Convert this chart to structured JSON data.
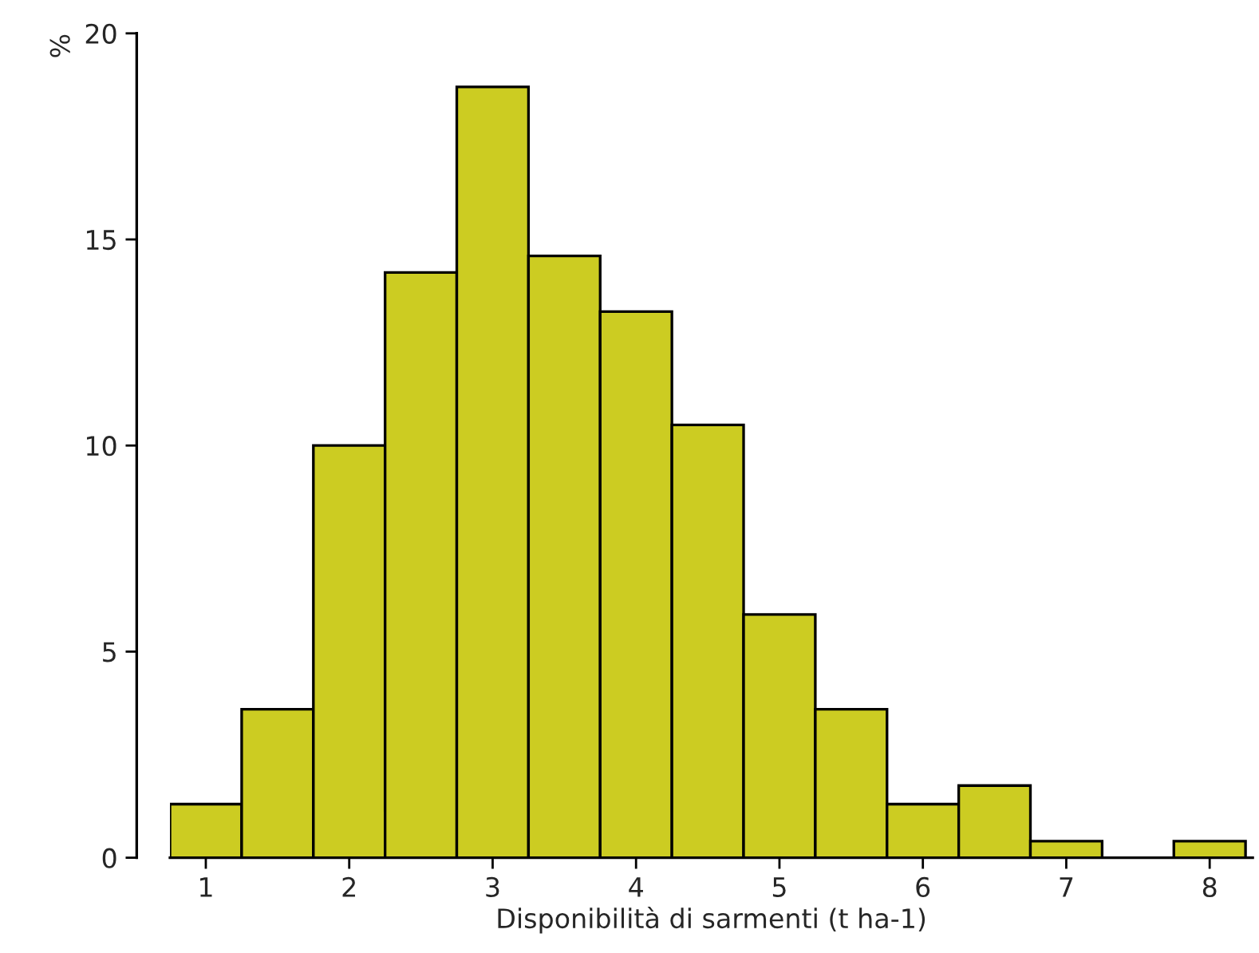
{
  "chart_data": {
    "type": "histogram",
    "xlabel": "Disponibilità di sarmenti (t ha-1)",
    "ylabel": "%",
    "bins": [
      0.75,
      1.25,
      1.75,
      2.25,
      2.75,
      3.25,
      3.75,
      4.25,
      4.75,
      5.25,
      5.75,
      6.25,
      6.75,
      7.25,
      7.75,
      8.25
    ],
    "values": [
      1.3,
      3.6,
      10.0,
      14.2,
      18.7,
      14.6,
      13.25,
      10.5,
      5.9,
      3.6,
      1.3,
      1.75,
      0.4,
      null,
      0.4
    ],
    "color": "#cccc22",
    "xlim": [
      0.75,
      8.3
    ],
    "xticks": [
      1,
      2,
      3,
      4,
      5,
      6,
      7,
      8
    ],
    "ylim": [
      0,
      20
    ],
    "yticks": [
      0,
      5,
      10,
      15,
      20
    ],
    "grid": false
  }
}
